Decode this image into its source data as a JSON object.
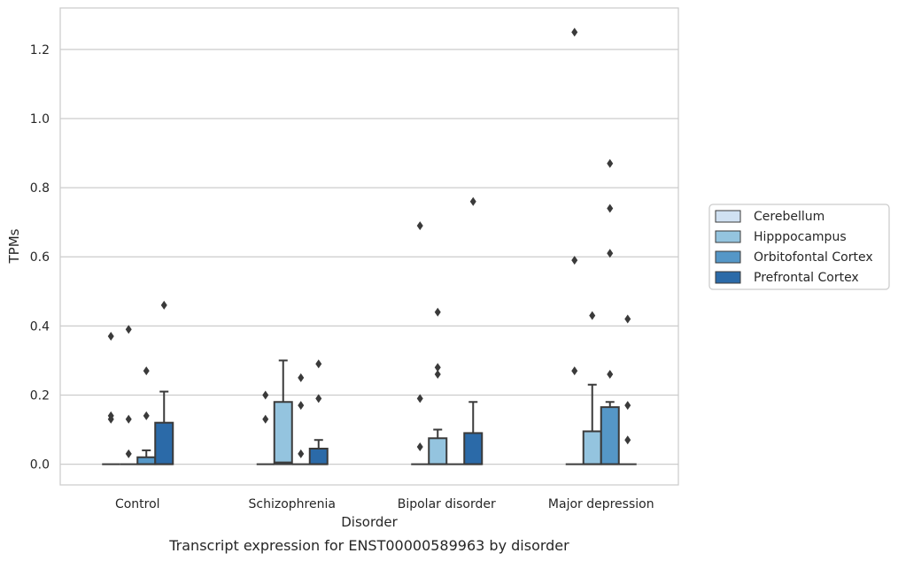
{
  "caption": "Transcript expression for ENST00000589963 by disorder",
  "chart_data": {
    "type": "boxplot",
    "title": "",
    "xlabel": "Disorder",
    "ylabel": "TPMs",
    "ylim": [
      -0.06,
      1.32
    ],
    "yticks": [
      0.0,
      0.2,
      0.4,
      0.6,
      0.8,
      1.0,
      1.2
    ],
    "ytick_labels": [
      "0.0",
      "0.2",
      "0.4",
      "0.6",
      "0.8",
      "1.0",
      "1.2"
    ],
    "grid": "horizontal",
    "legend_position": "right",
    "categories": [
      "Control",
      "Schizophrenia",
      "Bipolar disorder",
      "Major depression"
    ],
    "series": [
      {
        "name": "Cerebellum",
        "color": "#d0e1f2",
        "boxes": [
          {
            "q1": 0.0,
            "median": 0.0,
            "q3": 0.0,
            "whisker_low": 0.0,
            "whisker_high": 0.0,
            "outliers": [
              0.37,
              0.14,
              0.13
            ]
          },
          {
            "q1": 0.0,
            "median": 0.0,
            "q3": 0.0,
            "whisker_low": 0.0,
            "whisker_high": 0.0,
            "outliers": [
              0.2,
              0.13
            ]
          },
          {
            "q1": 0.0,
            "median": 0.0,
            "q3": 0.0,
            "whisker_low": 0.0,
            "whisker_high": 0.0,
            "outliers": [
              0.69,
              0.19,
              0.05
            ]
          },
          {
            "q1": 0.0,
            "median": 0.0,
            "q3": 0.0,
            "whisker_low": 0.0,
            "whisker_high": 0.0,
            "outliers": [
              1.25,
              0.59,
              0.27
            ]
          }
        ]
      },
      {
        "name": "Hipppocampus",
        "color": "#94c4df",
        "boxes": [
          {
            "q1": 0.0,
            "median": 0.0,
            "q3": 0.0,
            "whisker_low": 0.0,
            "whisker_high": 0.0,
            "outliers": [
              0.39,
              0.13,
              0.03
            ]
          },
          {
            "q1": 0.0,
            "median": 0.005,
            "q3": 0.18,
            "whisker_low": 0.0,
            "whisker_high": 0.3,
            "outliers": []
          },
          {
            "q1": 0.0,
            "median": 0.0,
            "q3": 0.075,
            "whisker_low": 0.0,
            "whisker_high": 0.1,
            "outliers": [
              0.44,
              0.28,
              0.26
            ]
          },
          {
            "q1": 0.0,
            "median": 0.0,
            "q3": 0.095,
            "whisker_low": 0.0,
            "whisker_high": 0.23,
            "outliers": [
              0.43
            ]
          }
        ]
      },
      {
        "name": "Orbitofontal Cortex",
        "color": "#5597c7",
        "boxes": [
          {
            "q1": 0.0,
            "median": 0.0,
            "q3": 0.02,
            "whisker_low": 0.0,
            "whisker_high": 0.04,
            "outliers": [
              0.27,
              0.14
            ]
          },
          {
            "q1": 0.0,
            "median": 0.0,
            "q3": 0.0,
            "whisker_low": 0.0,
            "whisker_high": 0.0,
            "outliers": [
              0.25,
              0.17,
              0.03
            ]
          },
          {
            "q1": 0.0,
            "median": 0.0,
            "q3": 0.0,
            "whisker_low": 0.0,
            "whisker_high": 0.0,
            "outliers": []
          },
          {
            "q1": 0.0,
            "median": 0.0,
            "q3": 0.165,
            "whisker_low": 0.0,
            "whisker_high": 0.18,
            "outliers": [
              0.87,
              0.74,
              0.61,
              0.26
            ]
          }
        ]
      },
      {
        "name": "Prefrontal Cortex",
        "color": "#2b6aa8",
        "boxes": [
          {
            "q1": 0.0,
            "median": 0.0,
            "q3": 0.12,
            "whisker_low": 0.0,
            "whisker_high": 0.21,
            "outliers": [
              0.46
            ]
          },
          {
            "q1": 0.0,
            "median": 0.0,
            "q3": 0.045,
            "whisker_low": 0.0,
            "whisker_high": 0.07,
            "outliers": [
              0.29,
              0.19
            ]
          },
          {
            "q1": 0.0,
            "median": 0.0,
            "q3": 0.09,
            "whisker_low": 0.0,
            "whisker_high": 0.18,
            "outliers": [
              0.76
            ]
          },
          {
            "q1": 0.0,
            "median": 0.0,
            "q3": 0.0,
            "whisker_low": 0.0,
            "whisker_high": 0.0,
            "outliers": [
              0.42,
              0.17,
              0.07
            ]
          }
        ]
      }
    ]
  }
}
